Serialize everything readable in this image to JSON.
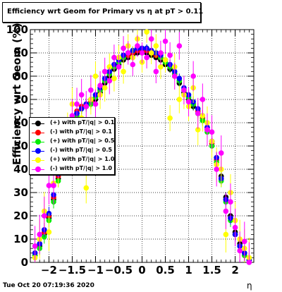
{
  "title": "Efficiency wrt Geom for Primary vs   η at pT > 0.11",
  "timestamp": "Tue Oct 20 07:19:36 2020",
  "chart_data": {
    "type": "scatter",
    "title": "Efficiency wrt Geom for Primary vs   η at pT > 0.11",
    "xlabel": "η",
    "ylabel": "Efficiency wrt Geom (%)",
    "xlim": [
      -2.4,
      2.4
    ],
    "ylim": [
      0,
      100
    ],
    "x_ticks": [
      "−2",
      "−1.5",
      "−1",
      "−0.5",
      "0",
      "0.5",
      "1",
      "1.5",
      "2"
    ],
    "y_ticks": [
      "0",
      "10",
      "20",
      "30",
      "40",
      "50",
      "60",
      "70",
      "80",
      "90",
      "100"
    ],
    "grid": true,
    "legend_position": "left-middle",
    "x": [
      -2.3,
      -2.2,
      -2.1,
      -2.0,
      -1.9,
      -1.8,
      -1.7,
      -1.6,
      -1.5,
      -1.4,
      -1.3,
      -1.2,
      -1.1,
      -1.0,
      -0.9,
      -0.8,
      -0.7,
      -0.6,
      -0.5,
      -0.4,
      -0.3,
      -0.2,
      -0.1,
      0.0,
      0.1,
      0.2,
      0.3,
      0.4,
      0.5,
      0.6,
      0.7,
      0.8,
      0.9,
      1.0,
      1.1,
      1.2,
      1.3,
      1.4,
      1.5,
      1.6,
      1.7,
      1.8,
      1.9,
      2.0,
      2.1,
      2.2,
      2.3
    ],
    "series": [
      {
        "name": "(+) with pT/|q| > 0.1",
        "color": "#000000",
        "values": [
          3,
          7,
          12,
          19,
          27,
          36,
          45,
          53,
          60,
          64,
          66,
          67,
          68,
          70,
          73,
          77,
          80,
          83,
          85,
          87,
          88,
          89,
          90,
          90,
          90,
          89,
          88,
          87,
          85,
          83,
          80,
          77,
          73,
          70,
          67,
          64,
          61,
          57,
          52,
          45,
          37,
          28,
          20,
          13,
          8,
          4,
          1
        ]
      },
      {
        "name": "(-) with pT/|q| > 0.1",
        "color": "#ff0000",
        "values": [
          4,
          8,
          13,
          20,
          28,
          37,
          46,
          54,
          61,
          65,
          67,
          68,
          69,
          71,
          74,
          78,
          81,
          84,
          86,
          88,
          89,
          90,
          91,
          91,
          91,
          90,
          89,
          88,
          86,
          84,
          81,
          78,
          74,
          71,
          68,
          65,
          62,
          58,
          51,
          44,
          36,
          27,
          19,
          12,
          7,
          3,
          1
        ]
      },
      {
        "name": "(+) with pT/|q| > 0.5",
        "color": "#00ee00",
        "values": [
          3,
          6,
          11,
          18,
          26,
          35,
          44,
          52,
          59,
          63,
          66,
          67,
          68,
          71,
          74,
          78,
          81,
          84,
          86,
          88,
          90,
          91,
          92,
          92,
          92,
          91,
          90,
          88,
          86,
          84,
          81,
          78,
          74,
          71,
          68,
          64,
          61,
          56,
          50,
          43,
          35,
          26,
          18,
          12,
          7,
          3,
          1
        ]
      },
      {
        "name": "(-) with pT/|q| > 0.5",
        "color": "#0000ff",
        "values": [
          4,
          8,
          14,
          21,
          29,
          38,
          47,
          55,
          61,
          64,
          66,
          68,
          70,
          72,
          75,
          79,
          82,
          85,
          87,
          89,
          90,
          91,
          92,
          92,
          92,
          91,
          90,
          89,
          87,
          85,
          82,
          79,
          75,
          72,
          69,
          66,
          63,
          58,
          52,
          45,
          36,
          27,
          19,
          12,
          7,
          4,
          1
        ]
      },
      {
        "name": "(+) with pT/|q| > 1.0",
        "color": "#ffff00",
        "values": [
          2,
          10,
          22,
          13,
          34,
          40,
          49,
          57,
          68,
          60,
          62,
          32,
          70,
          80,
          72,
          75,
          84,
          79,
          88,
          82,
          93,
          88,
          96,
          86,
          99,
          90,
          93,
          84,
          87,
          62,
          84,
          70,
          72,
          67,
          75,
          57,
          63,
          60,
          52,
          42,
          40,
          12,
          30,
          18,
          10,
          6,
          2
        ]
      },
      {
        "name": "(-) with pT/|q| > 1.0",
        "color": "#ff00ff",
        "values": [
          7,
          12,
          20,
          33,
          33,
          44,
          50,
          55,
          63,
          68,
          72,
          67,
          74,
          68,
          76,
          82,
          78,
          88,
          84,
          92,
          90,
          85,
          93,
          90,
          88,
          96,
          82,
          90,
          95,
          89,
          80,
          93,
          74,
          69,
          80,
          64,
          70,
          57,
          56,
          40,
          47,
          22,
          26,
          15,
          5,
          9,
          0
        ]
      }
    ]
  }
}
